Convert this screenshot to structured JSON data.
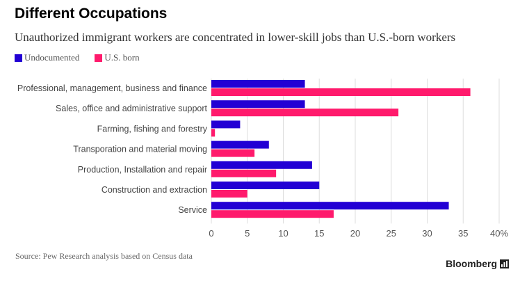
{
  "colors": {
    "undocumented": "#2200d4",
    "us_born": "#ff1a6c",
    "grid": "#dddddd"
  },
  "chart_data": {
    "type": "bar",
    "orientation": "horizontal",
    "title": "Different Occupations",
    "subtitle": "Unauthorized immigrant workers are concentrated in lower-skill jobs than U.S.-born workers",
    "categories": [
      "Professional, management, business and finance",
      "Sales, office and administrative support",
      "Farming, fishing and forestry",
      "Transporation and material moving",
      "Production, Installation and repair",
      "Construction and extraction",
      "Service"
    ],
    "series": [
      {
        "name": "Undocumented",
        "values": [
          13,
          13,
          4,
          8,
          14,
          15,
          33
        ]
      },
      {
        "name": "U.S. born",
        "values": [
          36,
          26,
          0.5,
          6,
          9,
          5,
          17
        ]
      }
    ],
    "xlim": [
      0,
      40
    ],
    "xticks": [
      0,
      5,
      10,
      15,
      20,
      25,
      30,
      35,
      40
    ],
    "xtick_labels": [
      "0",
      "5",
      "10",
      "15",
      "20",
      "25",
      "30",
      "35",
      "40%"
    ],
    "grid": true,
    "legend_position": "top-left"
  },
  "source": "Source: Pew Research analysis based on Census data",
  "brand": "Bloomberg"
}
